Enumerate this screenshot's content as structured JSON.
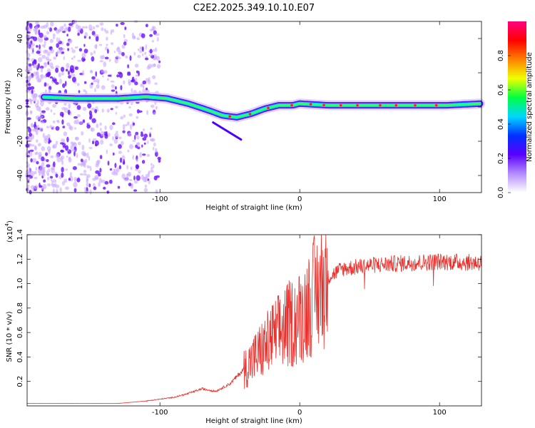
{
  "title": "C2E2.2025.349.10.10.E07",
  "chart_data": [
    {
      "type": "heatmap",
      "name": "spectrogram",
      "xlabel": "Height of straight line (km)",
      "ylabel": "Frequency (Hz)",
      "xlim": [
        -195,
        130
      ],
      "ylim": [
        -50,
        50
      ],
      "xticks": [
        -100,
        0,
        100
      ],
      "xtick_labels": [
        "-100",
        "0",
        "100"
      ],
      "yticks": [
        -40,
        -20,
        0,
        20,
        40
      ],
      "ytick_labels": [
        "-40",
        "-20",
        "0",
        "20",
        "40"
      ],
      "colorbar": {
        "label": "Normalized spectral amplitude",
        "range": [
          0,
          1
        ],
        "ticks": [
          0.0,
          0.2,
          0.4,
          0.6,
          0.8
        ],
        "tick_labels": [
          "0.0",
          "0.2",
          "0.4",
          "0.6",
          "0.8"
        ],
        "colors": [
          "#ffffff",
          "#b48cff",
          "#5a00ff",
          "#0030ff",
          "#00d8ff",
          "#00ff40",
          "#f0ff00",
          "#ff8000",
          "#ff0000",
          "#ff0080"
        ]
      },
      "ridge": {
        "description_points_x": [
          -190,
          -160,
          -130,
          -110,
          -95,
          -80,
          -65,
          -55,
          -45,
          -35,
          -25,
          -15,
          -5,
          0,
          20,
          50,
          80,
          105,
          130
        ],
        "description_points_y": [
          6,
          5,
          5,
          6,
          5,
          2,
          -2,
          -5,
          -6,
          -4,
          -1,
          1,
          1,
          2,
          1,
          1,
          1,
          1,
          2
        ]
      }
    },
    {
      "type": "line",
      "name": "snr",
      "xlabel": "Height of straight line (km)",
      "ylabel": "SNR (10 * v/v)",
      "scale_label": "(x10",
      "scale_exp": "4",
      "scale_close": ")",
      "xlim": [
        -195,
        130
      ],
      "ylim": [
        0,
        1.4
      ],
      "xticks": [
        -100,
        0,
        100
      ],
      "xtick_labels": [
        "-100",
        "0",
        "100"
      ],
      "yticks": [
        0.2,
        0.4,
        0.6,
        0.8,
        1.0,
        1.2,
        1.4
      ],
      "ytick_labels": [
        "0.2",
        "0.4",
        "0.6",
        "0.8",
        "1.0",
        "1.2",
        "1.4"
      ],
      "color": "#e8302c",
      "envelope_x": [
        -195,
        -130,
        -110,
        -90,
        -80,
        -70,
        -60,
        -50,
        -40,
        -30,
        -20,
        -10,
        0,
        10,
        20,
        30,
        50,
        80,
        100,
        130
      ],
      "envelope_y": [
        0.02,
        0.02,
        0.04,
        0.07,
        0.1,
        0.14,
        0.12,
        0.18,
        0.3,
        0.42,
        0.55,
        0.65,
        0.72,
        0.9,
        1.05,
        1.12,
        1.15,
        1.17,
        1.18,
        1.17
      ]
    }
  ]
}
